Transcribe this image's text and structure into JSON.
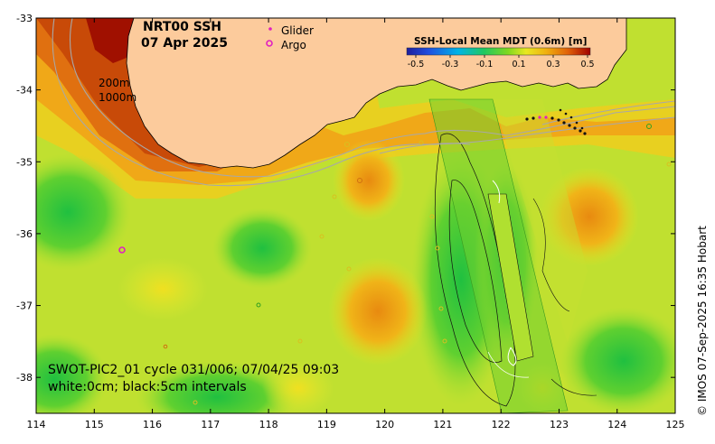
{
  "title": {
    "product": "NRT00 SSH",
    "date": "07 Apr 2025"
  },
  "legend": {
    "glider_label": "Glider",
    "argo_label": "Argo",
    "isobaths": [
      "200m",
      "1000m"
    ]
  },
  "colorbar": {
    "label": "SSH-Local Mean MDT (0.6m) [m]",
    "ticks": [
      "-0.5",
      "-0.3",
      "-0.1",
      "0.1",
      "0.3",
      "0.5"
    ],
    "range": [
      -0.5,
      0.5
    ],
    "colors": [
      "#1e1e9c",
      "#1f4fe0",
      "#00b4e6",
      "#20c860",
      "#7ed820",
      "#e8e820",
      "#f0b010",
      "#e06008",
      "#a00000"
    ]
  },
  "swath": {
    "caption": "SWOT-PIC2_01 cycle 031/006; 07/04/25 09:03",
    "contours": "white:0cm; black:5cm intervals"
  },
  "axes": {
    "lon_ticks": [
      "114",
      "115",
      "116",
      "117",
      "118",
      "119",
      "120",
      "121",
      "122",
      "123",
      "124",
      "125"
    ],
    "lat_ticks": [
      "-33",
      "-34",
      "-35",
      "-36",
      "-37",
      "-38"
    ],
    "lon_range": [
      114,
      125
    ],
    "lat_range": [
      -38.5,
      -33
    ]
  },
  "credit": "© IMOS 07-Sep-2025 16:35 Hobart",
  "colors": {
    "land": "#fccb9c",
    "glider": "#e020c0",
    "argo": "#e020c0"
  }
}
